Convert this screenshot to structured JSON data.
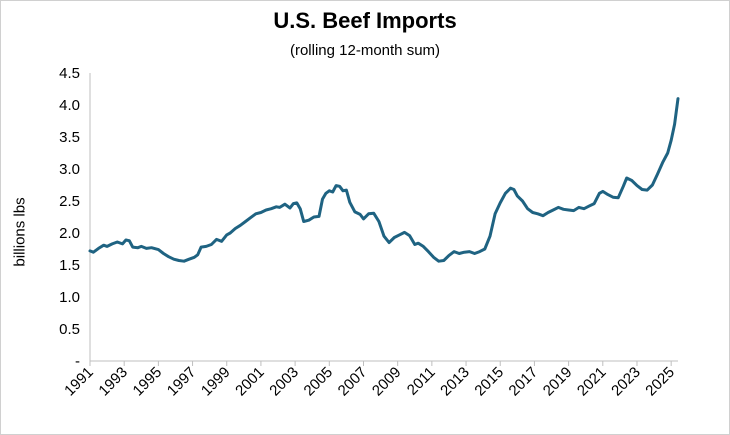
{
  "chart_data": {
    "type": "line",
    "title": "U.S. Beef Imports",
    "subtitle": "(rolling 12-month sum)",
    "ylabel": "billions lbs",
    "xlabel": "",
    "ylim": [
      0,
      4.5
    ],
    "xlim": [
      1991,
      2025.4
    ],
    "grid": false,
    "legend": "none",
    "y_tick_labels": [
      "-",
      "0.5",
      "1.0",
      "1.5",
      "2.0",
      "2.5",
      "3.0",
      "3.5",
      "4.0",
      "4.5"
    ],
    "y_tick_values": [
      0,
      0.5,
      1.0,
      1.5,
      2.0,
      2.5,
      3.0,
      3.5,
      4.0,
      4.5
    ],
    "x_tick_labels": [
      "1991",
      "1993",
      "1995",
      "1997",
      "1999",
      "2001",
      "2003",
      "2005",
      "2007",
      "2009",
      "2011",
      "2013",
      "2015",
      "2017",
      "2019",
      "2021",
      "2023",
      "2025"
    ],
    "x_tick_values": [
      1991,
      1993,
      1995,
      1997,
      1999,
      2001,
      2003,
      2005,
      2007,
      2009,
      2011,
      2013,
      2015,
      2017,
      2019,
      2021,
      2023,
      2025
    ],
    "series": [
      {
        "color": "#1f6382",
        "x": [
          1991.0,
          1991.2,
          1991.5,
          1991.8,
          1992.0,
          1992.3,
          1992.6,
          1992.9,
          1993.1,
          1993.3,
          1993.5,
          1993.8,
          1994.0,
          1994.3,
          1994.6,
          1995.0,
          1995.3,
          1995.6,
          1995.9,
          1996.2,
          1996.5,
          1996.8,
          1997.1,
          1997.3,
          1997.5,
          1997.8,
          1998.1,
          1998.4,
          1998.7,
          1999.0,
          1999.2,
          1999.5,
          1999.8,
          2000.1,
          2000.4,
          2000.7,
          2001.0,
          2001.3,
          2001.6,
          2001.9,
          2002.1,
          2002.4,
          2002.7,
          2002.9,
          2003.1,
          2003.3,
          2003.5,
          2003.8,
          2004.1,
          2004.4,
          2004.6,
          2004.8,
          2005.0,
          2005.2,
          2005.4,
          2005.6,
          2005.8,
          2006.0,
          2006.2,
          2006.5,
          2006.8,
          2007.0,
          2007.3,
          2007.6,
          2007.9,
          2008.2,
          2008.5,
          2008.8,
          2009.1,
          2009.4,
          2009.7,
          2010.0,
          2010.2,
          2010.5,
          2010.8,
          2011.1,
          2011.4,
          2011.7,
          2012.0,
          2012.3,
          2012.6,
          2012.9,
          2013.2,
          2013.5,
          2013.8,
          2014.1,
          2014.4,
          2014.7,
          2015.0,
          2015.3,
          2015.6,
          2015.8,
          2016.0,
          2016.3,
          2016.6,
          2016.9,
          2017.2,
          2017.5,
          2017.8,
          2018.1,
          2018.4,
          2018.7,
          2019.0,
          2019.3,
          2019.6,
          2019.9,
          2020.2,
          2020.5,
          2020.8,
          2021.0,
          2021.3,
          2021.6,
          2021.9,
          2022.2,
          2022.4,
          2022.7,
          2023.0,
          2023.3,
          2023.6,
          2023.9,
          2024.2,
          2024.5,
          2024.8,
          2025.0,
          2025.2,
          2025.4
        ],
        "values": [
          1.72,
          1.7,
          1.76,
          1.81,
          1.79,
          1.83,
          1.86,
          1.83,
          1.89,
          1.88,
          1.78,
          1.77,
          1.79,
          1.76,
          1.77,
          1.74,
          1.68,
          1.63,
          1.59,
          1.57,
          1.56,
          1.59,
          1.62,
          1.66,
          1.78,
          1.79,
          1.82,
          1.9,
          1.87,
          1.97,
          2.0,
          2.07,
          2.12,
          2.18,
          2.24,
          2.3,
          2.32,
          2.36,
          2.38,
          2.41,
          2.4,
          2.45,
          2.39,
          2.46,
          2.47,
          2.38,
          2.18,
          2.2,
          2.25,
          2.26,
          2.53,
          2.62,
          2.66,
          2.64,
          2.74,
          2.73,
          2.66,
          2.67,
          2.48,
          2.33,
          2.29,
          2.22,
          2.3,
          2.31,
          2.18,
          1.95,
          1.85,
          1.93,
          1.97,
          2.01,
          1.96,
          1.82,
          1.84,
          1.79,
          1.71,
          1.62,
          1.56,
          1.57,
          1.65,
          1.71,
          1.68,
          1.7,
          1.71,
          1.68,
          1.71,
          1.75,
          1.95,
          2.3,
          2.47,
          2.62,
          2.7,
          2.68,
          2.58,
          2.5,
          2.38,
          2.32,
          2.3,
          2.27,
          2.32,
          2.36,
          2.4,
          2.37,
          2.36,
          2.35,
          2.4,
          2.38,
          2.42,
          2.46,
          2.62,
          2.65,
          2.6,
          2.56,
          2.55,
          2.73,
          2.86,
          2.82,
          2.74,
          2.68,
          2.67,
          2.75,
          2.92,
          3.1,
          3.25,
          3.45,
          3.7,
          4.1
        ]
      }
    ]
  }
}
